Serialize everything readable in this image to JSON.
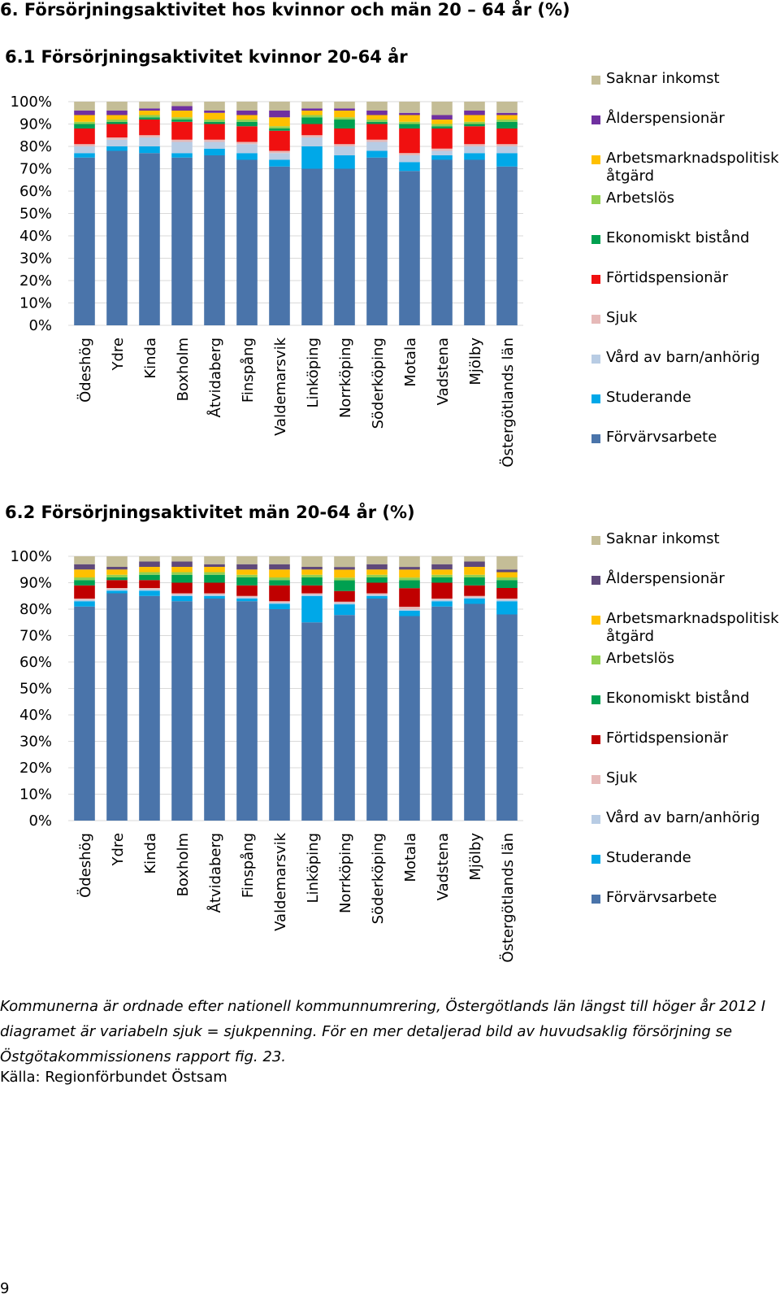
{
  "page": {
    "section_title": "6. Försörjningsaktivitet hos kvinnor och män 20 – 64 år (%)",
    "notes": "Kommunerna är ordnade efter nationell kommunnumrering, Östergötlands län längst till höger år 2012 I diagramet är variabeln sjuk = sjukpenning. För en mer detaljerad bild av huvudsaklig försörjning se Östgötakommissionens rapport fig. 23.",
    "source": "Källa: Regionförbundet Östsam",
    "page_number": "9"
  },
  "chart_data": [
    {
      "type": "bar",
      "stacked": true,
      "title": "6.1 Försörjningsaktivitet kvinnor 20-64 år",
      "ylim": [
        0,
        100
      ],
      "yticks": [
        "0%",
        "10%",
        "20%",
        "30%",
        "40%",
        "50%",
        "60%",
        "70%",
        "80%",
        "90%",
        "100%"
      ],
      "grid": true,
      "legend_position": "right",
      "categories": [
        "Ödeshög",
        "Ydre",
        "Kinda",
        "Boxholm",
        "Åtvidaberg",
        "Finspång",
        "Valdemarsvik",
        "Linköping",
        "Norrköping",
        "Söderköping",
        "Motala",
        "Vadstena",
        "Mjölby",
        "Östergötlands län"
      ],
      "series": [
        {
          "name": "Förvärvsarbete",
          "color": "#4A74AA",
          "values": [
            75,
            78,
            77,
            75,
            76,
            74,
            71,
            70,
            70,
            75,
            69,
            74,
            74,
            71
          ]
        },
        {
          "name": "Studerande",
          "color": "#00A8E8",
          "values": [
            2,
            2,
            3,
            2,
            3,
            3,
            3,
            10,
            6,
            3,
            4,
            2,
            3,
            6
          ]
        },
        {
          "name": "Vård av barn/anhörig",
          "color": "#B8CCE4",
          "values": [
            3,
            3,
            4,
            5,
            3,
            4,
            3,
            4,
            4,
            4,
            3,
            2,
            3,
            3
          ]
        },
        {
          "name": "Sjuk",
          "color": "#E6B9B8",
          "values": [
            1,
            1,
            1,
            1,
            1,
            1,
            1,
            1,
            1,
            1,
            1,
            1,
            1,
            1
          ]
        },
        {
          "name": "Förtidspensionär",
          "color": "#F01010",
          "values": [
            7,
            6,
            7,
            8,
            7,
            7,
            9,
            5,
            7,
            7,
            11,
            9,
            8,
            7
          ]
        },
        {
          "name": "Ekonomiskt bistånd",
          "color": "#00A050",
          "values": [
            2,
            1,
            1,
            1,
            1,
            2,
            1,
            3,
            4,
            1,
            2,
            1,
            1,
            3
          ]
        },
        {
          "name": "Arbetslös",
          "color": "#92D050",
          "values": [
            1,
            1,
            1,
            1,
            1,
            1,
            1,
            1,
            1,
            1,
            1,
            1,
            1,
            1
          ]
        },
        {
          "name": "Arbetsmarknadspolitisk åtgärd",
          "color": "#FFC000",
          "values": [
            3,
            2,
            2,
            3,
            3,
            2,
            4,
            2,
            3,
            2,
            3,
            2,
            3,
            2
          ]
        },
        {
          "name": "Ålderspensionär",
          "color": "#7030A0",
          "values": [
            2,
            2,
            1,
            2,
            1,
            2,
            3,
            1,
            1,
            2,
            1,
            2,
            2,
            1
          ]
        },
        {
          "name": "Saknar inkomst",
          "color": "#C4BD97",
          "values": [
            4,
            4,
            3,
            2,
            4,
            4,
            4,
            3,
            3,
            4,
            5,
            6,
            4,
            5
          ]
        }
      ]
    },
    {
      "type": "bar",
      "stacked": true,
      "title": "6.2 Försörjningsaktivitet män 20-64 år (%)",
      "ylim": [
        0,
        100
      ],
      "yticks": [
        "0%",
        "10%",
        "20%",
        "30%",
        "40%",
        "50%",
        "60%",
        "70%",
        "80%",
        "90%",
        "100%"
      ],
      "grid": true,
      "legend_position": "right",
      "categories": [
        "Ödeshög",
        "Ydre",
        "Kinda",
        "Boxholm",
        "Åtvidaberg",
        "Finspång",
        "Valdemarsvik",
        "Linköping",
        "Norrköping",
        "Söderköping",
        "Motala",
        "Vadstena",
        "Mjölby",
        "Östergötlands län"
      ],
      "series": [
        {
          "name": "Förvärvsarbete",
          "color": "#4A74AA",
          "values": [
            81,
            86,
            85,
            83,
            84,
            83,
            80,
            75,
            77,
            84,
            77,
            81,
            82,
            78
          ]
        },
        {
          "name": "Studerande",
          "color": "#00A8E8",
          "values": [
            2,
            1,
            2,
            2,
            1,
            1,
            2,
            10,
            4,
            1,
            2,
            2,
            2,
            5
          ]
        },
        {
          "name": "Vård av barn/anhörig",
          "color": "#B8CCE4",
          "values": [
            0.5,
            0.5,
            0.5,
            0.5,
            0.5,
            0.5,
            0.5,
            0.5,
            0.5,
            0.5,
            0.5,
            0.5,
            0.5,
            0.5
          ]
        },
        {
          "name": "Sjuk",
          "color": "#E6B9B8",
          "values": [
            0.5,
            0.5,
            0.5,
            0.5,
            0.5,
            0.5,
            0.5,
            0.5,
            0.5,
            0.5,
            1,
            0.5,
            0.5,
            0.5
          ]
        },
        {
          "name": "Förtidspensionär",
          "color": "#C00000",
          "values": [
            5,
            3,
            3,
            4,
            4,
            4,
            6,
            3,
            4,
            4,
            7,
            6,
            4,
            4
          ]
        },
        {
          "name": "Ekonomiskt bistånd",
          "color": "#00A050",
          "values": [
            2,
            1,
            2,
            3,
            3,
            3,
            2,
            3,
            4,
            2,
            3,
            2,
            3,
            3
          ]
        },
        {
          "name": "Arbetslös",
          "color": "#92D050",
          "values": [
            1,
            1,
            1,
            1,
            1,
            1,
            1,
            1,
            1,
            1,
            1,
            1,
            1,
            1
          ]
        },
        {
          "name": "Arbetsmarknadspolitisk åtgärd",
          "color": "#FFC000",
          "values": [
            3,
            2,
            2,
            2,
            2,
            2,
            3,
            2,
            3,
            2,
            3,
            2,
            3,
            2
          ]
        },
        {
          "name": "Ålderspensionär",
          "color": "#5F497A",
          "values": [
            2,
            1,
            2,
            2,
            1,
            2,
            2,
            1,
            1,
            2,
            1,
            2,
            2,
            1
          ]
        },
        {
          "name": "Saknar inkomst",
          "color": "#C4BD97",
          "values": [
            3,
            4,
            2,
            2,
            3,
            3,
            3,
            4,
            4,
            3,
            4,
            3,
            2,
            5
          ]
        }
      ]
    }
  ]
}
